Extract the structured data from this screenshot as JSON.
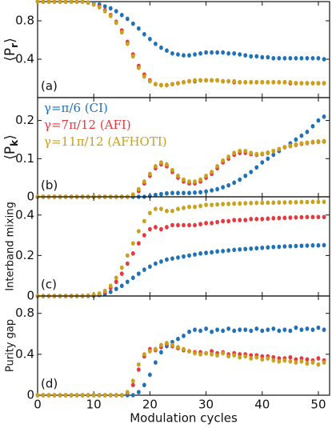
{
  "chart_data": [
    {
      "type": "scatter",
      "panel_label": "(a)",
      "ylabel_parts": [
        "⟨P",
        "r",
        "⟩"
      ],
      "x": [
        0,
        1,
        2,
        3,
        4,
        5,
        6,
        7,
        8,
        9,
        10,
        11,
        12,
        13,
        14,
        15,
        16,
        17,
        18,
        19,
        20,
        21,
        22,
        23,
        24,
        25,
        26,
        27,
        28,
        29,
        30,
        31,
        32,
        33,
        34,
        35,
        36,
        37,
        38,
        39,
        40,
        41,
        42,
        43,
        44,
        45,
        46,
        47,
        48,
        49,
        50,
        51
      ],
      "xlim": [
        0,
        52
      ],
      "xticks": [
        0,
        10,
        20,
        30,
        40,
        50
      ],
      "ylim": [
        0,
        1
      ],
      "yticks": [
        0.4,
        0.8
      ],
      "series": [
        {
          "color": "#1f72b8",
          "values": [
            1,
            1,
            1,
            1,
            1,
            1,
            1,
            1,
            1,
            0.99,
            0.98,
            0.97,
            0.95,
            0.93,
            0.9,
            0.86,
            0.82,
            0.77,
            0.72,
            0.66,
            0.61,
            0.56,
            0.52,
            0.49,
            0.46,
            0.45,
            0.44,
            0.44,
            0.45,
            0.46,
            0.47,
            0.47,
            0.47,
            0.47,
            0.46,
            0.46,
            0.45,
            0.44,
            0.43,
            0.43,
            0.42,
            0.42,
            0.41,
            0.41,
            0.41,
            0.41,
            0.41,
            0.41,
            0.41,
            0.41,
            0.41,
            0.4
          ]
        },
        {
          "color": "#e8383d",
          "values": [
            1,
            1,
            1,
            1,
            1,
            1,
            1,
            1,
            1,
            0.99,
            0.97,
            0.95,
            0.91,
            0.86,
            0.79,
            0.7,
            0.58,
            0.45,
            0.33,
            0.24,
            0.18,
            0.14,
            0.13,
            0.13,
            0.14,
            0.15,
            0.16,
            0.17,
            0.17,
            0.18,
            0.18,
            0.18,
            0.18,
            0.17,
            0.17,
            0.16,
            0.16,
            0.16,
            0.16,
            0.16,
            0.16,
            0.16,
            0.16,
            0.16,
            0.16,
            0.15,
            0.15,
            0.15,
            0.15,
            0.15,
            0.15,
            0.15
          ]
        },
        {
          "color": "#c9a11b",
          "values": [
            1,
            1,
            1,
            1,
            1,
            1,
            1,
            1,
            1,
            0.99,
            0.97,
            0.94,
            0.9,
            0.85,
            0.78,
            0.68,
            0.56,
            0.43,
            0.31,
            0.22,
            0.17,
            0.14,
            0.13,
            0.13,
            0.14,
            0.15,
            0.16,
            0.17,
            0.18,
            0.18,
            0.18,
            0.18,
            0.18,
            0.17,
            0.17,
            0.17,
            0.16,
            0.16,
            0.16,
            0.16,
            0.16,
            0.16,
            0.16,
            0.16,
            0.16,
            0.16,
            0.15,
            0.15,
            0.15,
            0.15,
            0.15,
            0.15
          ]
        }
      ]
    },
    {
      "type": "scatter",
      "panel_label": "(b)",
      "ylabel_parts": [
        "⟨P",
        "k",
        "⟩"
      ],
      "legend": "upper left",
      "x": [
        0,
        1,
        2,
        3,
        4,
        5,
        6,
        7,
        8,
        9,
        10,
        11,
        12,
        13,
        14,
        15,
        16,
        17,
        18,
        19,
        20,
        21,
        22,
        23,
        24,
        25,
        26,
        27,
        28,
        29,
        30,
        31,
        32,
        33,
        34,
        35,
        36,
        37,
        38,
        39,
        40,
        41,
        42,
        43,
        44,
        45,
        46,
        47,
        48,
        49,
        50,
        51
      ],
      "xlim": [
        0,
        52
      ],
      "xticks": [
        0,
        10,
        20,
        30,
        40,
        50
      ],
      "ylim": [
        0,
        0.26
      ],
      "yticks": [
        0,
        0.1,
        0.2
      ],
      "series": [
        {
          "name": "γ=π/6 (CI)",
          "color": "#1f72b8",
          "values": [
            0,
            0,
            0,
            0,
            0,
            0,
            0,
            0,
            0,
            0,
            0,
            0,
            0,
            0,
            0,
            0,
            0,
            0,
            0,
            0,
            0.002,
            0.005,
            0.007,
            0.009,
            0.01,
            0.01,
            0.01,
            0.01,
            0.011,
            0.012,
            0.014,
            0.017,
            0.02,
            0.025,
            0.03,
            0.037,
            0.045,
            0.055,
            0.065,
            0.077,
            0.09,
            0.1,
            0.11,
            0.12,
            0.13,
            0.14,
            0.15,
            0.16,
            0.17,
            0.185,
            0.2,
            0.21
          ]
        },
        {
          "name": "γ=7π/12 (AFI)",
          "color": "#e8383d",
          "values": [
            0,
            0,
            0,
            0,
            0,
            0,
            0,
            0,
            0,
            0,
            0,
            0,
            0,
            0,
            0,
            0,
            0,
            0.005,
            0.015,
            0.035,
            0.055,
            0.075,
            0.085,
            0.08,
            0.065,
            0.05,
            0.04,
            0.035,
            0.035,
            0.04,
            0.05,
            0.06,
            0.075,
            0.09,
            0.1,
            0.11,
            0.115,
            0.115,
            0.112,
            0.11,
            0.112,
            0.115,
            0.12,
            0.125,
            0.13,
            0.133,
            0.136,
            0.139,
            0.141,
            0.143,
            0.144,
            0.145
          ]
        },
        {
          "name": "γ=11π/12 (AFHOTI)",
          "color": "#c9a11b",
          "values": [
            0,
            0,
            0,
            0,
            0,
            0,
            0,
            0,
            0,
            0,
            0,
            0,
            0,
            0,
            0,
            0,
            0,
            0.006,
            0.02,
            0.04,
            0.06,
            0.08,
            0.09,
            0.085,
            0.07,
            0.055,
            0.045,
            0.04,
            0.04,
            0.045,
            0.055,
            0.065,
            0.08,
            0.095,
            0.105,
            0.115,
            0.12,
            0.12,
            0.115,
            0.112,
            0.113,
            0.116,
            0.12,
            0.125,
            0.13,
            0.134,
            0.137,
            0.14,
            0.142,
            0.144,
            0.145,
            0.146
          ]
        }
      ]
    },
    {
      "type": "scatter",
      "panel_label": "(c)",
      "ylabel": "Interband mixing",
      "x": [
        0,
        1,
        2,
        3,
        4,
        5,
        6,
        7,
        8,
        9,
        10,
        11,
        12,
        13,
        14,
        15,
        16,
        17,
        18,
        19,
        20,
        21,
        22,
        23,
        24,
        25,
        26,
        27,
        28,
        29,
        30,
        31,
        32,
        33,
        34,
        35,
        36,
        37,
        38,
        39,
        40,
        41,
        42,
        43,
        44,
        45,
        46,
        47,
        48,
        49,
        50,
        51
      ],
      "xlim": [
        0,
        52
      ],
      "xticks": [
        0,
        10,
        20,
        30,
        40,
        50
      ],
      "ylim": [
        0,
        0.49
      ],
      "yticks": [
        0,
        0.2,
        0.4
      ],
      "series": [
        {
          "color": "#1f72b8",
          "values": [
            0,
            0,
            0,
            0,
            0,
            0,
            0,
            0,
            0,
            0,
            0.002,
            0.005,
            0.01,
            0.02,
            0.035,
            0.05,
            0.07,
            0.09,
            0.11,
            0.13,
            0.145,
            0.16,
            0.17,
            0.18,
            0.185,
            0.19,
            0.195,
            0.2,
            0.205,
            0.21,
            0.213,
            0.216,
            0.22,
            0.222,
            0.225,
            0.228,
            0.23,
            0.232,
            0.234,
            0.236,
            0.238,
            0.24,
            0.242,
            0.243,
            0.245,
            0.246,
            0.247,
            0.248,
            0.249,
            0.25,
            0.25,
            0.251
          ]
        },
        {
          "color": "#e8383d",
          "values": [
            0,
            0,
            0,
            0,
            0,
            0,
            0,
            0,
            0,
            0.002,
            0.005,
            0.01,
            0.02,
            0.04,
            0.07,
            0.11,
            0.16,
            0.21,
            0.26,
            0.3,
            0.33,
            0.34,
            0.33,
            0.34,
            0.35,
            0.35,
            0.35,
            0.35,
            0.35,
            0.355,
            0.36,
            0.36,
            0.365,
            0.37,
            0.37,
            0.375,
            0.375,
            0.375,
            0.38,
            0.38,
            0.38,
            0.382,
            0.384,
            0.385,
            0.386,
            0.387,
            0.388,
            0.389,
            0.39,
            0.39,
            0.39,
            0.39
          ]
        },
        {
          "color": "#c9a11b",
          "values": [
            0,
            0,
            0,
            0,
            0,
            0,
            0,
            0,
            0,
            0.002,
            0.006,
            0.012,
            0.025,
            0.05,
            0.09,
            0.14,
            0.2,
            0.26,
            0.32,
            0.37,
            0.41,
            0.43,
            0.43,
            0.42,
            0.42,
            0.43,
            0.435,
            0.44,
            0.44,
            0.445,
            0.45,
            0.45,
            0.452,
            0.454,
            0.455,
            0.456,
            0.457,
            0.458,
            0.459,
            0.46,
            0.46,
            0.461,
            0.461,
            0.462,
            0.462,
            0.463,
            0.463,
            0.464,
            0.464,
            0.465,
            0.465,
            0.465
          ]
        }
      ]
    },
    {
      "type": "scatter",
      "panel_label": "(d)",
      "ylabel": "Purity gap",
      "xlabel": "Modulation cycles",
      "x": [
        0,
        1,
        2,
        3,
        4,
        5,
        6,
        7,
        8,
        9,
        10,
        11,
        12,
        13,
        14,
        15,
        16,
        17,
        18,
        19,
        20,
        21,
        22,
        23,
        24,
        25,
        26,
        27,
        28,
        29,
        30,
        31,
        32,
        33,
        34,
        35,
        36,
        37,
        38,
        39,
        40,
        41,
        42,
        43,
        44,
        45,
        46,
        47,
        48,
        49,
        50,
        51
      ],
      "xlim": [
        0,
        52
      ],
      "xticks": [
        0,
        10,
        20,
        30,
        40,
        50
      ],
      "ylim": [
        0,
        0.97
      ],
      "yticks": [
        0,
        0.4,
        0.8
      ],
      "series": [
        {
          "color": "#1f72b8",
          "values": [
            0,
            0,
            0,
            0,
            0,
            0,
            0,
            0,
            0,
            0,
            0,
            0,
            0,
            0,
            0,
            0,
            0,
            0,
            0.03,
            0.1,
            0.2,
            0.32,
            0.42,
            0.48,
            0.52,
            0.55,
            0.58,
            0.62,
            0.64,
            0.63,
            0.65,
            0.62,
            0.64,
            0.63,
            0.65,
            0.63,
            0.64,
            0.64,
            0.63,
            0.65,
            0.63,
            0.64,
            0.65,
            0.63,
            0.64,
            0.63,
            0.66,
            0.64,
            0.65,
            0.64,
            0.66,
            0.64
          ]
        },
        {
          "color": "#e8383d",
          "values": [
            0,
            0,
            0,
            0,
            0,
            0,
            0,
            0,
            0,
            0,
            0,
            0,
            0,
            0,
            0,
            0,
            0.02,
            0.1,
            0.25,
            0.38,
            0.45,
            0.44,
            0.47,
            0.5,
            0.48,
            0.46,
            0.44,
            0.43,
            0.42,
            0.42,
            0.41,
            0.43,
            0.41,
            0.42,
            0.4,
            0.41,
            0.4,
            0.4,
            0.39,
            0.39,
            0.38,
            0.38,
            0.37,
            0.36,
            0.36,
            0.37,
            0.35,
            0.36,
            0.35,
            0.34,
            0.36,
            0.34
          ]
        },
        {
          "color": "#c9a11b",
          "values": [
            0,
            0,
            0,
            0,
            0,
            0,
            0,
            0,
            0,
            0,
            0,
            0,
            0,
            0,
            0,
            0,
            0.03,
            0.14,
            0.3,
            0.4,
            0.43,
            0.45,
            0.49,
            0.51,
            0.49,
            0.47,
            0.45,
            0.43,
            0.41,
            0.4,
            0.41,
            0.4,
            0.39,
            0.41,
            0.38,
            0.39,
            0.37,
            0.38,
            0.36,
            0.37,
            0.35,
            0.36,
            0.34,
            0.33,
            0.34,
            0.33,
            0.32,
            0.33,
            0.31,
            0.32,
            0.3,
            0.32
          ]
        }
      ]
    }
  ]
}
